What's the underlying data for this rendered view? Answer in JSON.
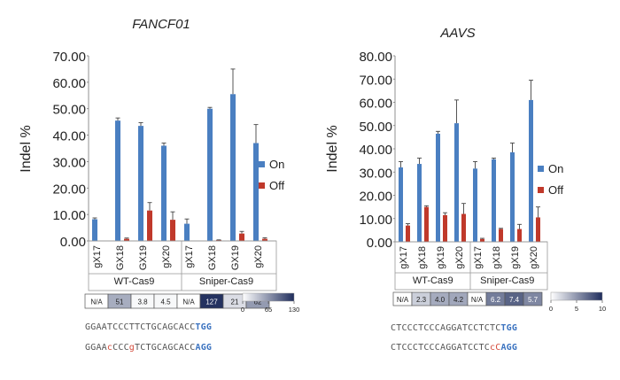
{
  "colors": {
    "on": "#4a7fc1",
    "off": "#c0392b",
    "heat_low": "#ffffff",
    "heat_high": "#1f2d5c"
  },
  "chart_data": [
    {
      "type": "bar",
      "title": "FANCF01",
      "ylabel": "Indel %",
      "ylim": [
        0,
        70
      ],
      "yticks": [
        "0.00",
        "10.00",
        "20.00",
        "30.00",
        "40.00",
        "50.00",
        "60.00",
        "70.00"
      ],
      "categories": [
        "gX17",
        "GX18",
        "GX19",
        "gX20",
        "gX17",
        "GX18",
        "GX19",
        "gX20"
      ],
      "groups": [
        "WT-Cas9",
        "Sniper-Cas9"
      ],
      "series": [
        {
          "name": "On",
          "values": [
            8.2,
            45.5,
            43.5,
            36.0,
            6.5,
            50.0,
            55.5,
            37.0
          ],
          "errors": [
            0.5,
            1.0,
            1.2,
            1.0,
            1.8,
            0.5,
            9.5,
            7.0
          ]
        },
        {
          "name": "Off",
          "values": [
            0,
            0.8,
            11.5,
            8.0,
            0,
            0.3,
            2.8,
            0.8
          ],
          "errors": [
            0,
            0.3,
            3.0,
            3.0,
            0,
            0.1,
            0.8,
            0.4
          ]
        }
      ],
      "specificity": [
        "N/A",
        "51",
        "3.8",
        "4.5",
        "N/A",
        "127",
        "21",
        "62"
      ],
      "specificity_values": [
        null,
        51,
        3.8,
        4.5,
        null,
        127,
        21,
        62
      ],
      "scale": {
        "min_label": "0",
        "mid_label": "65",
        "max_label": "130",
        "max": 130
      },
      "sequences": [
        {
          "parts": [
            {
              "t": "GGAATCCCTTCTGCAGCACC",
              "c": ""
            },
            {
              "t": "TGG",
              "c": "pam"
            }
          ]
        },
        {
          "parts": [
            {
              "t": "GGAA",
              "c": ""
            },
            {
              "t": "c",
              "c": "mm"
            },
            {
              "t": "CCC",
              "c": ""
            },
            {
              "t": "g",
              "c": "mm"
            },
            {
              "t": "TCTGCAGCACC",
              "c": ""
            },
            {
              "t": "AGG",
              "c": "pam"
            }
          ]
        }
      ]
    },
    {
      "type": "bar",
      "title": "AAVS",
      "ylabel": "Indel %",
      "ylim": [
        0,
        80
      ],
      "yticks": [
        "0.00",
        "10.00",
        "20.00",
        "30.00",
        "40.00",
        "50.00",
        "60.00",
        "70.00",
        "80.00"
      ],
      "categories": [
        "gX17",
        "gX18",
        "gX19",
        "gX20",
        "gX17",
        "gX18",
        "gX19",
        "gX20"
      ],
      "groups": [
        "WT-Cas9",
        "Sniper-Cas9"
      ],
      "series": [
        {
          "name": "On",
          "values": [
            32.0,
            33.5,
            46.5,
            51.0,
            31.5,
            35.5,
            38.5,
            61.0
          ],
          "errors": [
            2.5,
            2.5,
            1.0,
            10.0,
            3.0,
            0.5,
            4.0,
            8.5
          ]
        },
        {
          "name": "Off",
          "values": [
            7.0,
            15.0,
            11.5,
            12.0,
            1.2,
            5.5,
            5.5,
            10.5
          ],
          "errors": [
            0.8,
            0.5,
            1.0,
            4.5,
            0.3,
            0.3,
            2.0,
            4.5
          ]
        }
      ],
      "specificity": [
        "N/A",
        "2.3",
        "4.0",
        "4.2",
        "N/A",
        "6.2",
        "7.4",
        "5.7"
      ],
      "specificity_values": [
        null,
        2.3,
        4.0,
        4.2,
        null,
        6.2,
        7.4,
        5.7
      ],
      "scale": {
        "min_label": "0",
        "mid_label": "5",
        "max_label": "10",
        "max": 10
      },
      "sequences": [
        {
          "parts": [
            {
              "t": "CTCCCTCCCAGGATCCTCTC",
              "c": ""
            },
            {
              "t": "TGG",
              "c": "pam"
            }
          ]
        },
        {
          "parts": [
            {
              "t": "CTCCCTCCCAGGATCCTC",
              "c": ""
            },
            {
              "t": "cC",
              "c": "mm"
            },
            {
              "t": "AGG",
              "c": "pam"
            }
          ]
        }
      ]
    }
  ]
}
